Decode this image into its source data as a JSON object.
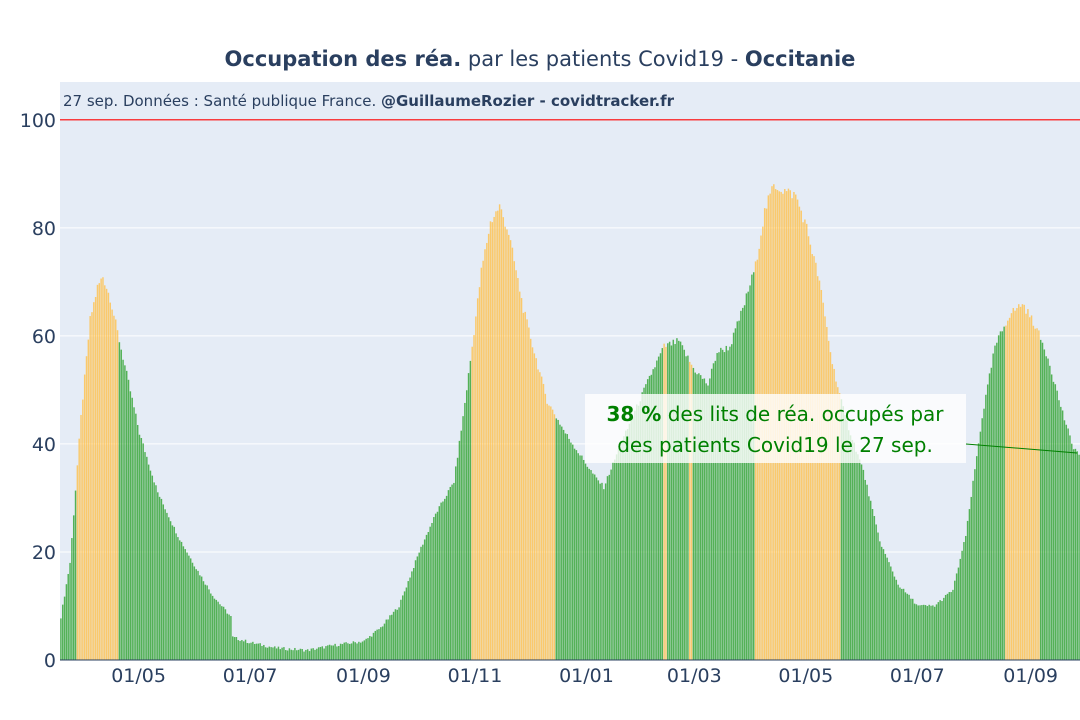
{
  "chart_data": {
    "type": "bar",
    "title_bold_1": "Occupation des réa.",
    "title_mid": " par les patients Covid19 - ",
    "title_bold_2": "Occitanie",
    "subtitle_plain": "27 sep. Données : Santé publique France. ",
    "subtitle_bold": "@GuillaumeRozier - covidtracker.fr",
    "xlabel": "",
    "ylabel": "",
    "ylim": [
      0,
      107
    ],
    "y_ticks": [
      0,
      20,
      40,
      60,
      80,
      100
    ],
    "reference_line": 100,
    "x_start": "2020-03-19",
    "x_end": "2021-09-27",
    "x_ticks": [
      {
        "date": "2020-05-01",
        "label": "01/05"
      },
      {
        "date": "2020-07-01",
        "label": "01/07"
      },
      {
        "date": "2020-09-01",
        "label": "01/09"
      },
      {
        "date": "2020-11-01",
        "label": "01/11"
      },
      {
        "date": "2021-01-01",
        "label": "01/01"
      },
      {
        "date": "2021-03-01",
        "label": "01/03"
      },
      {
        "date": "2021-05-01",
        "label": "01/05"
      },
      {
        "date": "2021-07-01",
        "label": "01/07"
      },
      {
        "date": "2021-09-01",
        "label": "01/09"
      }
    ],
    "series_note": "Daily share (%) of ICU beds occupied by Covid19 patients; bars highlighted in orange during lockdown / curfew periods",
    "control_points": [
      [
        "2020-03-19",
        8
      ],
      [
        "2020-03-24",
        18
      ],
      [
        "2020-03-30",
        45
      ],
      [
        "2020-04-04",
        63
      ],
      [
        "2020-04-08",
        69
      ],
      [
        "2020-04-11",
        71
      ],
      [
        "2020-04-15",
        67
      ],
      [
        "2020-04-22",
        56
      ],
      [
        "2020-05-01",
        42
      ],
      [
        "2020-05-11",
        31
      ],
      [
        "2020-05-22",
        23
      ],
      [
        "2020-06-01",
        17
      ],
      [
        "2020-06-10",
        12
      ],
      [
        "2020-06-20",
        8
      ],
      [
        "2020-06-21",
        4.2
      ],
      [
        "2020-07-01",
        3.2
      ],
      [
        "2020-07-15",
        2.2
      ],
      [
        "2020-08-01",
        1.8
      ],
      [
        "2020-08-15",
        2.7
      ],
      [
        "2020-09-01",
        3.5
      ],
      [
        "2020-09-10",
        6
      ],
      [
        "2020-09-20",
        10
      ],
      [
        "2020-10-01",
        20
      ],
      [
        "2020-10-10",
        27
      ],
      [
        "2020-10-20",
        33
      ],
      [
        "2020-10-25",
        45
      ],
      [
        "2020-10-30",
        58
      ],
      [
        "2020-11-04",
        72
      ],
      [
        "2020-11-09",
        81
      ],
      [
        "2020-11-14",
        84
      ],
      [
        "2020-11-19",
        79
      ],
      [
        "2020-11-27",
        65
      ],
      [
        "2020-12-03",
        57
      ],
      [
        "2020-12-10",
        48
      ],
      [
        "2020-12-20",
        42
      ],
      [
        "2020-12-28",
        38
      ],
      [
        "2021-01-05",
        34
      ],
      [
        "2021-01-10",
        32
      ],
      [
        "2021-01-17",
        38
      ],
      [
        "2021-01-27",
        46
      ],
      [
        "2021-02-05",
        53
      ],
      [
        "2021-02-12",
        58
      ],
      [
        "2021-02-20",
        59
      ],
      [
        "2021-02-28",
        54
      ],
      [
        "2021-03-08",
        51
      ],
      [
        "2021-03-13",
        57
      ],
      [
        "2021-03-20",
        58
      ],
      [
        "2021-03-28",
        66
      ],
      [
        "2021-04-03",
        73
      ],
      [
        "2021-04-08",
        83
      ],
      [
        "2021-04-13",
        88
      ],
      [
        "2021-04-18",
        87
      ],
      [
        "2021-04-25",
        86
      ],
      [
        "2021-05-01",
        80
      ],
      [
        "2021-05-08",
        70
      ],
      [
        "2021-05-15",
        55
      ],
      [
        "2021-05-22",
        45
      ],
      [
        "2021-06-01",
        35
      ],
      [
        "2021-06-10",
        22
      ],
      [
        "2021-06-20",
        14
      ],
      [
        "2021-07-01",
        10
      ],
      [
        "2021-07-10",
        10
      ],
      [
        "2021-07-20",
        13
      ],
      [
        "2021-07-27",
        23
      ],
      [
        "2021-08-05",
        45
      ],
      [
        "2021-08-12",
        58
      ],
      [
        "2021-08-20",
        64
      ],
      [
        "2021-08-27",
        66
      ],
      [
        "2021-09-03",
        62
      ],
      [
        "2021-09-10",
        56
      ],
      [
        "2021-09-17",
        47
      ],
      [
        "2021-09-23",
        40
      ],
      [
        "2021-09-27",
        38
      ]
    ],
    "highlight_periods": [
      [
        "2020-03-28",
        "2020-04-19"
      ],
      [
        "2020-10-30",
        "2020-12-14"
      ],
      [
        "2021-02-12",
        "2021-02-13"
      ],
      [
        "2021-02-26",
        "2021-02-27"
      ],
      [
        "2021-04-03",
        "2021-05-19"
      ],
      [
        "2021-08-18",
        "2021-09-05"
      ]
    ],
    "colors": {
      "bar": "#2ea32e",
      "highlight": "#ffc04a",
      "reference": "#ff0000",
      "plot_bg": "#e5ecf6",
      "grid": "#ffffff",
      "text": "#2a3f5f",
      "annotation": "#008000"
    },
    "annotation": {
      "value": "38",
      "pct": " %",
      "line1_rest": " des lits de réa. occupés par",
      "line2": "des patients Covid19 le 27 sep."
    }
  }
}
